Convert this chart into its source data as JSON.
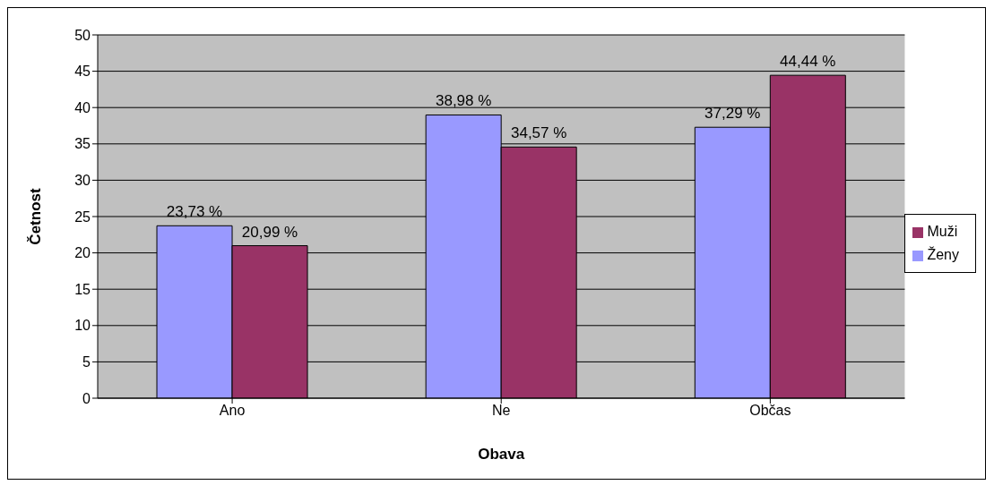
{
  "chart_data": {
    "type": "bar",
    "xlabel": "Obava",
    "ylabel": "Četnost",
    "categories": [
      "Ano",
      "Ne",
      "Občas"
    ],
    "series": [
      {
        "name": "Ženy",
        "color": "#9999ff",
        "values": [
          23.73,
          38.98,
          37.29
        ],
        "value_labels": [
          "23,73 %",
          "38,98 %",
          "37,29 %"
        ]
      },
      {
        "name": "Muži",
        "color": "#993366",
        "values": [
          20.99,
          34.57,
          44.44
        ],
        "value_labels": [
          "20,99 %",
          "34,57 %",
          "44,44 %"
        ]
      }
    ],
    "ylim": [
      0,
      50
    ],
    "yticks": [
      0,
      5,
      10,
      15,
      20,
      25,
      30,
      35,
      40,
      45,
      50
    ],
    "grid": "y",
    "legend": "right"
  }
}
